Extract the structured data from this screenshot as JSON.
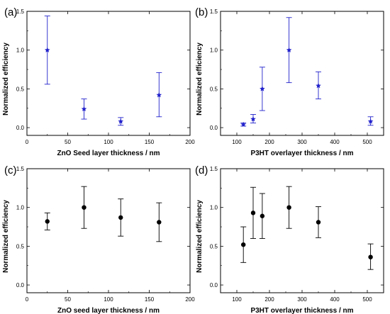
{
  "chart_data": [
    {
      "type": "scatter",
      "panel_label": "(a)",
      "xlabel": "ZnO Seed layer thickness / nm",
      "ylabel": "Normalized efficiency",
      "xlim": [
        0,
        200
      ],
      "ylim": [
        -0.1,
        1.5
      ],
      "xticks": [
        0,
        50,
        100,
        150,
        200
      ],
      "yticks": [
        0.0,
        0.5,
        1.0,
        1.5
      ],
      "xtick_labels": [
        "0",
        "50",
        "100",
        "150",
        "200"
      ],
      "ytick_labels": [
        "0.0",
        "0.5",
        "1.0",
        "1.5"
      ],
      "marker": "star",
      "color": "#2222cc",
      "points": [
        {
          "x": 25,
          "y": 1.0,
          "err_low": 0.56,
          "err_high": 1.44
        },
        {
          "x": 70,
          "y": 0.24,
          "err_low": 0.11,
          "err_high": 0.37
        },
        {
          "x": 115,
          "y": 0.08,
          "err_low": 0.03,
          "err_high": 0.13
        },
        {
          "x": 162,
          "y": 0.42,
          "err_low": 0.14,
          "err_high": 0.71
        }
      ]
    },
    {
      "type": "scatter",
      "panel_label": "(b)",
      "xlabel": "P3HT overlayer thickness / nm",
      "ylabel": "Normalized efficiency",
      "xlim": [
        50,
        550
      ],
      "ylim": [
        -0.1,
        1.5
      ],
      "xticks": [
        100,
        200,
        300,
        400,
        500
      ],
      "yticks": [
        0.0,
        0.5,
        1.0,
        1.5
      ],
      "xtick_labels": [
        "100",
        "200",
        "300",
        "400",
        "500"
      ],
      "ytick_labels": [
        "0.0",
        "0.5",
        "1.0",
        "1.5"
      ],
      "marker": "star",
      "color": "#2222cc",
      "points": [
        {
          "x": 120,
          "y": 0.04,
          "err_low": 0.02,
          "err_high": 0.06
        },
        {
          "x": 150,
          "y": 0.11,
          "err_low": 0.06,
          "err_high": 0.17
        },
        {
          "x": 178,
          "y": 0.5,
          "err_low": 0.22,
          "err_high": 0.78
        },
        {
          "x": 260,
          "y": 1.0,
          "err_low": 0.58,
          "err_high": 1.42
        },
        {
          "x": 350,
          "y": 0.54,
          "err_low": 0.37,
          "err_high": 0.72
        },
        {
          "x": 510,
          "y": 0.08,
          "err_low": 0.03,
          "err_high": 0.14
        }
      ]
    },
    {
      "type": "scatter",
      "panel_label": "(c)",
      "xlabel": "ZnO seed layer thickness / nm",
      "ylabel": "Normalized efficiency",
      "xlim": [
        0,
        200
      ],
      "ylim": [
        -0.1,
        1.5
      ],
      "xticks": [
        0,
        50,
        100,
        150,
        200
      ],
      "yticks": [
        0.0,
        0.5,
        1.0,
        1.5
      ],
      "xtick_labels": [
        "0",
        "50",
        "100",
        "150",
        "200"
      ],
      "ytick_labels": [
        "0.0",
        "0.5",
        "1.0",
        "1.5"
      ],
      "marker": "circle",
      "color": "#000000",
      "points": [
        {
          "x": 25,
          "y": 0.82,
          "err_low": 0.71,
          "err_high": 0.93
        },
        {
          "x": 70,
          "y": 1.0,
          "err_low": 0.73,
          "err_high": 1.27
        },
        {
          "x": 115,
          "y": 0.87,
          "err_low": 0.63,
          "err_high": 1.11
        },
        {
          "x": 162,
          "y": 0.81,
          "err_low": 0.56,
          "err_high": 1.06
        }
      ]
    },
    {
      "type": "scatter",
      "panel_label": "(d)",
      "xlabel": "P3HT overlayer thickness / nm",
      "ylabel": "Normalized efficiency",
      "xlim": [
        50,
        550
      ],
      "ylim": [
        -0.1,
        1.5
      ],
      "xticks": [
        100,
        200,
        300,
        400,
        500
      ],
      "yticks": [
        0.0,
        0.5,
        1.0,
        1.5
      ],
      "xtick_labels": [
        "100",
        "200",
        "300",
        "400",
        "500"
      ],
      "ytick_labels": [
        "0.0",
        "0.5",
        "1.0",
        "1.5"
      ],
      "marker": "circle",
      "color": "#000000",
      "points": [
        {
          "x": 120,
          "y": 0.52,
          "err_low": 0.29,
          "err_high": 0.75
        },
        {
          "x": 150,
          "y": 0.93,
          "err_low": 0.6,
          "err_high": 1.26
        },
        {
          "x": 178,
          "y": 0.89,
          "err_low": 0.6,
          "err_high": 1.18
        },
        {
          "x": 260,
          "y": 1.0,
          "err_low": 0.73,
          "err_high": 1.27
        },
        {
          "x": 350,
          "y": 0.81,
          "err_low": 0.61,
          "err_high": 1.01
        },
        {
          "x": 510,
          "y": 0.36,
          "err_low": 0.2,
          "err_high": 0.53
        }
      ]
    }
  ]
}
